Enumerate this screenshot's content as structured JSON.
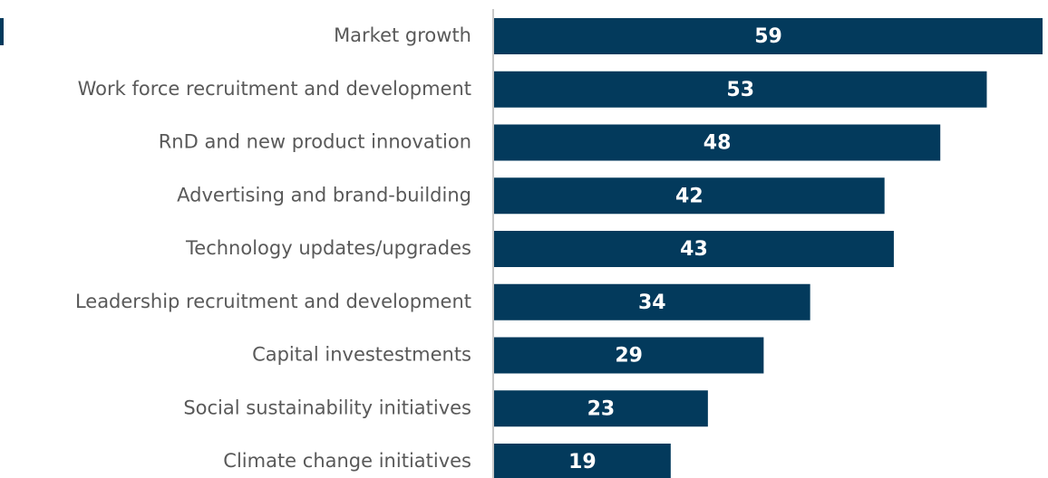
{
  "chart_data": {
    "type": "bar",
    "orientation": "horizontal",
    "categories": [
      "Market growth",
      "Work force recruitment and development",
      "RnD and new product innovation",
      "Advertising and brand-building",
      "Technology updates/upgrades",
      "Leadership recruitment and development",
      "Capital investestments",
      "Social sustainability initiatives",
      "Climate change initiatives"
    ],
    "values": [
      59,
      53,
      48,
      42,
      43,
      34,
      29,
      23,
      19
    ],
    "color": "#033a5c",
    "xlim": [
      0,
      59
    ]
  }
}
